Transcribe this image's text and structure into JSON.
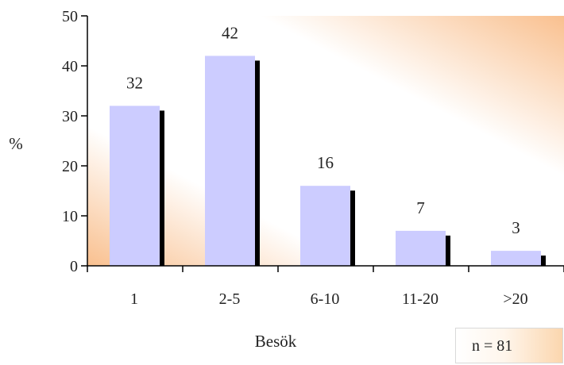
{
  "chart_data": {
    "type": "bar",
    "categories": [
      "1",
      "2-5",
      "6-10",
      "11-20",
      ">20"
    ],
    "values": [
      32,
      42,
      16,
      7,
      3
    ],
    "data_labels": [
      "32",
      "42",
      "16",
      "7",
      "3"
    ],
    "xlabel": "Besök",
    "ylabel": "%",
    "ylim": [
      0,
      50
    ],
    "yticks": [
      "0",
      "10",
      "20",
      "30",
      "40",
      "50"
    ],
    "grid": false,
    "bar_color": "#ccccff",
    "shadow_color": "#000000",
    "background_gradient": [
      "#ffffff",
      "#f9c08f"
    ]
  },
  "annotation": {
    "n_label": "n = 81"
  }
}
